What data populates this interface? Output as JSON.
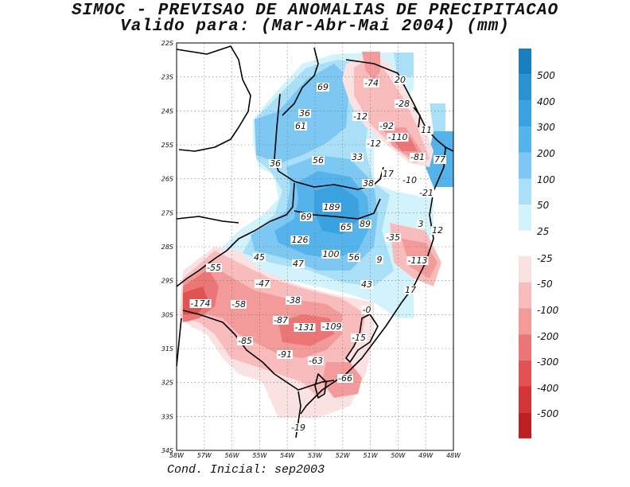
{
  "title": {
    "line1": "SIMOC - PREVISAO DE ANOMALIAS DE PRECIPITACAO",
    "line2": "Valido para: (Mar-Abr-Mai 2004) (mm)"
  },
  "footer": "Cond. Inicial: sep2003",
  "axes": {
    "lat_ticks": [
      "22S",
      "23S",
      "24S",
      "25S",
      "26S",
      "27S",
      "28S",
      "29S",
      "30S",
      "31S",
      "32S",
      "33S",
      "34S"
    ],
    "lon_ticks": [
      "58W",
      "57W",
      "56W",
      "55W",
      "54W",
      "53W",
      "52W",
      "51W",
      "50W",
      "49W",
      "48W"
    ]
  },
  "colorbar": {
    "labels": [
      "500",
      "400",
      "300",
      "200",
      "100",
      "50",
      "25",
      "-25",
      "-50",
      "-100",
      "-200",
      "-300",
      "-400",
      "-500"
    ],
    "colors_pos": [
      "#1a7fc0",
      "#2b92d2",
      "#3aa2e0",
      "#54b3ea",
      "#7cc8f2",
      "#aadff8",
      "#d3f3fc"
    ],
    "colors_neg": [
      "#fbe2e2",
      "#f8bcbc",
      "#f39a9a",
      "#ec7676",
      "#e05353",
      "#d13535",
      "#bc1f1f"
    ]
  },
  "values": [
    {
      "text": "69"
    },
    {
      "text": "36"
    },
    {
      "text": "61"
    },
    {
      "text": "36"
    },
    {
      "text": "56"
    },
    {
      "text": "33"
    },
    {
      "text": "38"
    },
    {
      "text": "17"
    },
    {
      "text": "189"
    },
    {
      "text": "69"
    },
    {
      "text": "65"
    },
    {
      "text": "89"
    },
    {
      "text": "126"
    },
    {
      "text": "45"
    },
    {
      "text": "47"
    },
    {
      "text": "100"
    },
    {
      "text": "56"
    },
    {
      "text": "9"
    },
    {
      "text": "43"
    },
    {
      "text": "17"
    },
    {
      "text": "3"
    },
    {
      "text": "12"
    },
    {
      "text": "-0"
    },
    {
      "text": "-74"
    },
    {
      "text": "20"
    },
    {
      "text": "-28"
    },
    {
      "text": "-12"
    },
    {
      "text": "-92"
    },
    {
      "text": "11"
    },
    {
      "text": "-12"
    },
    {
      "text": "-110"
    },
    {
      "text": "-81"
    },
    {
      "text": "77"
    },
    {
      "text": "-10"
    },
    {
      "text": "-21"
    },
    {
      "text": "-35"
    },
    {
      "text": "-113"
    },
    {
      "text": "-55"
    },
    {
      "text": "-47"
    },
    {
      "text": "-174"
    },
    {
      "text": "-58"
    },
    {
      "text": "-38"
    },
    {
      "text": "-87"
    },
    {
      "text": "-131"
    },
    {
      "text": "-109"
    },
    {
      "text": "-85"
    },
    {
      "text": "-91"
    },
    {
      "text": "-63"
    },
    {
      "text": "-15"
    },
    {
      "text": "-66"
    },
    {
      "text": "-19"
    }
  ]
}
